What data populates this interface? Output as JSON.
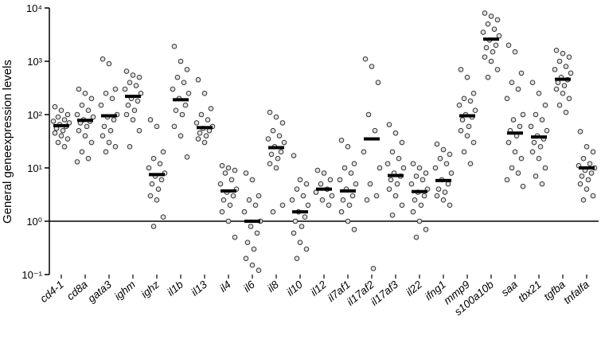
{
  "chart_data": {
    "type": "strip",
    "y_label": "General geneexpression levels",
    "ylog": true,
    "ylim": [
      0.1,
      10000
    ],
    "yticks": [
      {
        "value": 0.1,
        "label": "10⁻¹"
      },
      {
        "value": 1,
        "label": "10⁰"
      },
      {
        "value": 10,
        "label": "10¹"
      },
      {
        "value": 100,
        "label": "10²"
      },
      {
        "value": 1000,
        "label": "10³"
      },
      {
        "value": 10000,
        "label": "10⁴"
      }
    ],
    "reference_line": 1,
    "point_fill": "#e0e0e0",
    "point_stroke": "#333333",
    "median_color": "#000000",
    "groups": [
      {
        "name": "cd4-1",
        "median": 62,
        "values": [
          140,
          120,
          100,
          90,
          80,
          75,
          70,
          65,
          60,
          55,
          50,
          45,
          40,
          35,
          30,
          25
        ]
      },
      {
        "name": "cd8a",
        "median": 78,
        "values": [
          300,
          250,
          200,
          150,
          120,
          100,
          90,
          80,
          75,
          70,
          60,
          50,
          40,
          30,
          20,
          15,
          13
        ]
      },
      {
        "name": "gata3",
        "median": 95,
        "values": [
          1100,
          900,
          300,
          250,
          200,
          150,
          100,
          90,
          80,
          60,
          50,
          40,
          30,
          25,
          20
        ]
      },
      {
        "name": "ighm",
        "median": 220,
        "values": [
          650,
          550,
          500,
          400,
          350,
          300,
          250,
          200,
          180,
          150,
          120,
          100,
          80,
          50,
          25
        ]
      },
      {
        "name": "ighz",
        "median": 7.5,
        "values": [
          80,
          60,
          20,
          15,
          12,
          10,
          8,
          7,
          6,
          5,
          4,
          3,
          2.5,
          1.2,
          0.8
        ]
      },
      {
        "name": "il1b",
        "median": 190,
        "values": [
          1900,
          1000,
          700,
          500,
          400,
          300,
          250,
          200,
          150,
          120,
          100,
          60,
          40,
          16
        ]
      },
      {
        "name": "il13",
        "median": 57,
        "values": [
          450,
          250,
          130,
          100,
          80,
          70,
          60,
          55,
          50,
          45,
          40,
          35,
          30
        ]
      },
      {
        "name": "il4",
        "median": 3.7,
        "values": [
          11,
          10,
          9,
          8,
          6,
          5,
          4,
          3.5,
          3,
          2.5,
          2,
          1.5,
          1,
          0.5
        ]
      },
      {
        "name": "il6",
        "median": 1.0,
        "values": [
          8,
          6,
          3,
          2.5,
          2,
          1.5,
          1,
          0.8,
          0.6,
          0.4,
          0.3,
          0.2,
          0.15,
          0.12
        ]
      },
      {
        "name": "il8",
        "median": 24,
        "values": [
          110,
          90,
          70,
          50,
          40,
          35,
          30,
          25,
          20,
          18,
          15,
          12,
          10,
          2,
          1.5
        ]
      },
      {
        "name": "il10",
        "median": 1.5,
        "values": [
          17,
          6,
          5,
          4,
          3,
          2.5,
          2,
          1.5,
          1.2,
          1,
          0.8,
          0.6,
          0.4,
          0.3,
          0.2
        ]
      },
      {
        "name": "il12",
        "median": 4,
        "values": [
          9,
          8,
          6,
          5,
          4,
          3.5,
          3,
          2.5,
          2
        ]
      },
      {
        "name": "il7af1",
        "median": 3.7,
        "values": [
          33,
          25,
          12,
          10,
          8,
          6,
          5,
          4,
          3,
          2.5,
          2,
          1.5,
          1,
          0.7
        ]
      },
      {
        "name": "il17af2",
        "median": 35,
        "values": [
          1100,
          800,
          400,
          100,
          50,
          20,
          10,
          5,
          3,
          2.5,
          0.13
        ]
      },
      {
        "name": "il17af3",
        "median": 7.2,
        "values": [
          65,
          45,
          30,
          20,
          15,
          12,
          10,
          8,
          7,
          6,
          5,
          4,
          3,
          2,
          1.3
        ]
      },
      {
        "name": "il22",
        "median": 3.6,
        "values": [
          12,
          10,
          8,
          7,
          6,
          5,
          4,
          3.5,
          3,
          2.5,
          2,
          1.5,
          1,
          0.7,
          0.5
        ]
      },
      {
        "name": "ifng1",
        "median": 5.8,
        "values": [
          28,
          22,
          18,
          15,
          12,
          10,
          8,
          6,
          5,
          4,
          3.5,
          3,
          2.5,
          2
        ]
      },
      {
        "name": "mmp9",
        "median": 95,
        "values": [
          700,
          500,
          250,
          200,
          180,
          150,
          120,
          100,
          90,
          80,
          60,
          50,
          40,
          30,
          20,
          12
        ]
      },
      {
        "name": "s100a10b",
        "median": 2600,
        "values": [
          8000,
          7000,
          6000,
          5000,
          4000,
          3500,
          3000,
          2500,
          2000,
          1800,
          1500,
          1200,
          1000,
          700,
          500
        ]
      },
      {
        "name": "saa",
        "median": 45,
        "values": [
          2000,
          1500,
          600,
          400,
          300,
          200,
          100,
          80,
          60,
          50,
          40,
          30,
          20,
          15,
          10,
          8,
          6,
          4.5
        ]
      },
      {
        "name": "tbx21",
        "median": 38,
        "values": [
          400,
          250,
          150,
          100,
          80,
          60,
          50,
          40,
          35,
          30,
          25,
          20,
          15,
          10,
          7,
          5
        ]
      },
      {
        "name": "tgfba",
        "median": 460,
        "values": [
          1600,
          1400,
          1200,
          1000,
          800,
          700,
          600,
          500,
          450,
          400,
          350,
          300,
          250,
          200,
          150,
          110
        ]
      },
      {
        "name": "tnfalfa",
        "median": 10,
        "values": [
          48,
          25,
          20,
          15,
          12,
          11,
          10,
          9,
          8,
          7,
          6,
          5,
          4,
          3,
          2.5
        ]
      }
    ]
  }
}
